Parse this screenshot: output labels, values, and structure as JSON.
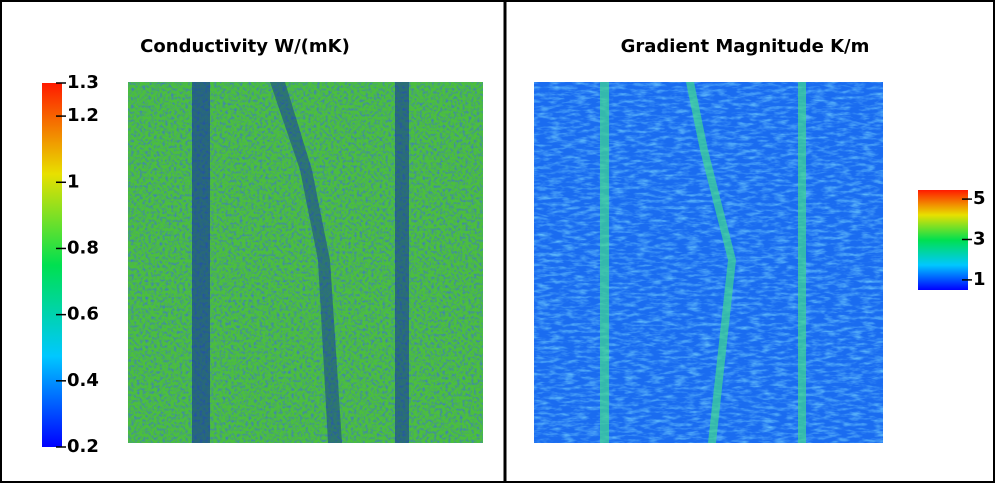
{
  "panels": [
    {
      "title": "Conductivity W/(mK)",
      "colorbar": {
        "lim": [
          0.2,
          1.3
        ],
        "ticks": [
          1.3,
          1.2,
          1,
          0.8,
          0.6,
          0.4,
          0.2
        ]
      }
    },
    {
      "title": "Gradient Magnitude K/m",
      "colorbar": {
        "lim": [
          0.5,
          5.45
        ],
        "ticks": [
          5,
          3,
          1
        ]
      }
    }
  ]
}
